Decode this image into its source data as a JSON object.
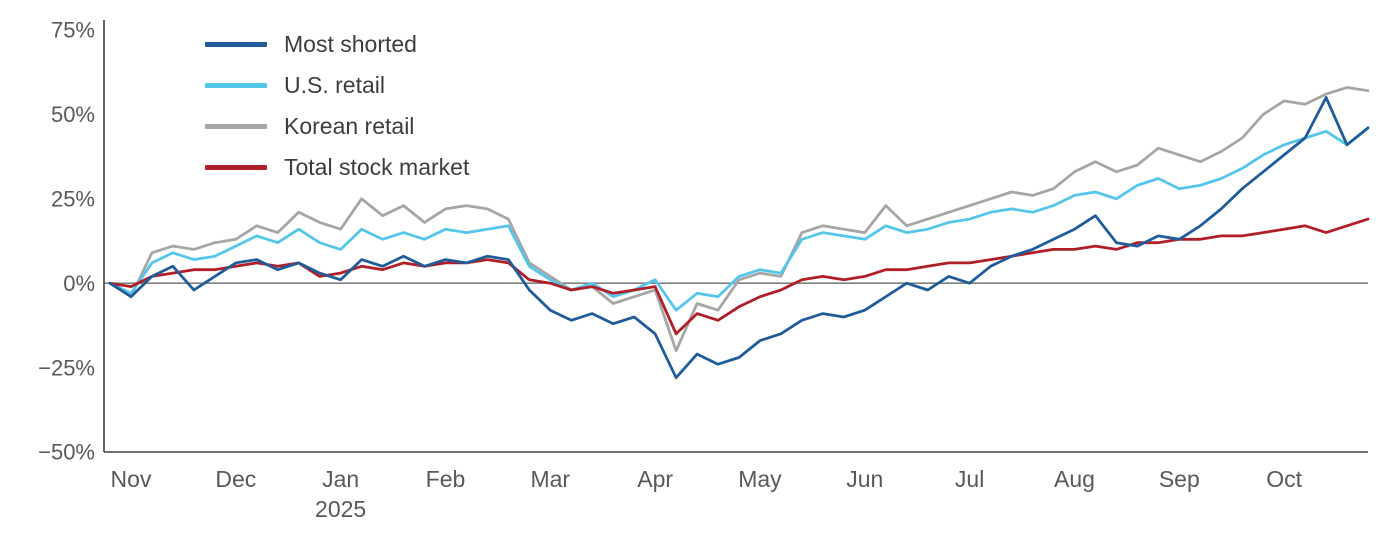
{
  "chart_data": {
    "type": "line",
    "title": "",
    "xlabel": "",
    "ylabel": "",
    "ylim": [
      -50,
      75
    ],
    "grid": false,
    "zero_line": true,
    "legend_position": "top-left",
    "x_start": 0,
    "x_step": 0.2,
    "x_tick_labels": [
      "Nov",
      "Dec",
      "Jan",
      "Feb",
      "Mar",
      "Apr",
      "May",
      "Jun",
      "Jul",
      "Aug",
      "Sep",
      "Oct"
    ],
    "x_sub_label": {
      "index": 2,
      "text": "2025"
    },
    "y_ticks": [
      75,
      50,
      25,
      0,
      -25,
      -50
    ],
    "y_tick_labels": [
      "75%",
      "50%",
      "25%",
      "0%",
      "−25%",
      "−50%"
    ],
    "series": [
      {
        "name": "Most shorted",
        "color": "#1F5C99",
        "values": [
          0,
          -4,
          2,
          5,
          -2,
          2,
          6,
          7,
          4,
          6,
          3,
          1,
          7,
          5,
          8,
          5,
          7,
          6,
          8,
          7,
          -2,
          -8,
          -11,
          -9,
          -12,
          -10,
          -15,
          -28,
          -21,
          -24,
          -22,
          -17,
          -15,
          -11,
          -9,
          -10,
          -8,
          -4,
          0,
          -2,
          2,
          0,
          5,
          8,
          10,
          13,
          16,
          20,
          12,
          11,
          14,
          13,
          17,
          22,
          28,
          33,
          38,
          43,
          55,
          41,
          46
        ]
      },
      {
        "name": "U.S. retail",
        "color": "#55C6EA",
        "values": [
          0,
          -3,
          6,
          9,
          7,
          8,
          11,
          14,
          12,
          16,
          12,
          10,
          16,
          13,
          15,
          13,
          16,
          15,
          16,
          17,
          5,
          1,
          -2,
          0,
          -4,
          -2,
          1,
          -8,
          -3,
          -4,
          2,
          4,
          3,
          13,
          15,
          14,
          13,
          17,
          15,
          16,
          18,
          19,
          21,
          22,
          21,
          23,
          26,
          27,
          25,
          29,
          31,
          28,
          29,
          31,
          34,
          38,
          41,
          43,
          45,
          41,
          46
        ]
      },
      {
        "name": "Korean retail",
        "color": "#A6A6A6",
        "values": [
          0,
          -4,
          9,
          11,
          10,
          12,
          13,
          17,
          15,
          21,
          18,
          16,
          25,
          20,
          23,
          18,
          22,
          23,
          22,
          19,
          6,
          2,
          -2,
          -1,
          -6,
          -4,
          -2,
          -20,
          -6,
          -8,
          1,
          3,
          2,
          15,
          17,
          16,
          15,
          23,
          17,
          19,
          21,
          23,
          25,
          27,
          26,
          28,
          33,
          36,
          33,
          35,
          40,
          38,
          36,
          39,
          43,
          50,
          54,
          53,
          56,
          58,
          57
        ]
      },
      {
        "name": "Total stock market",
        "color": "#B01F28",
        "values": [
          0,
          -1,
          2,
          3,
          4,
          4,
          5,
          6,
          5,
          6,
          2,
          3,
          5,
          4,
          6,
          5,
          6,
          6,
          7,
          6,
          1,
          0,
          -2,
          -1,
          -3,
          -2,
          -1,
          -15,
          -9,
          -11,
          -7,
          -4,
          -2,
          1,
          2,
          1,
          2,
          4,
          4,
          5,
          6,
          6,
          7,
          8,
          9,
          10,
          10,
          11,
          10,
          12,
          12,
          13,
          13,
          14,
          14,
          15,
          16,
          17,
          15,
          17,
          19
        ]
      }
    ],
    "axis_color": "#404040",
    "zero_line_color": "#808080",
    "tick_label_color": "#595959"
  }
}
